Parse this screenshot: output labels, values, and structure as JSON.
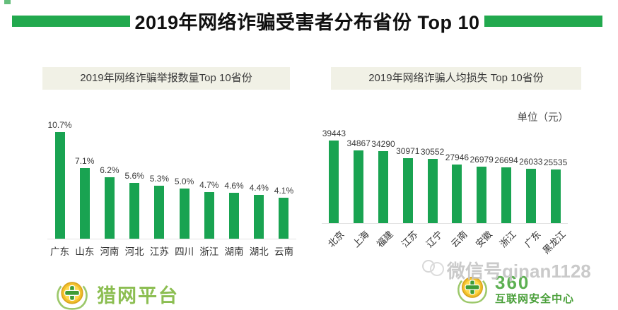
{
  "title": "2019年网络诈骗受害者分布省份 Top 10",
  "colors": {
    "banner_green": "#22a94e",
    "bar_green": "#19a351",
    "header_bg": "#f1f1e6",
    "logo_light_green": "#8cbe52",
    "logo_green": "#5db052",
    "watermark_gray": "#c6c6c6"
  },
  "chart_data": [
    {
      "type": "bar",
      "title": "2019年网络诈骗举报数量Top 10省份",
      "categories": [
        "广东",
        "山东",
        "河南",
        "河北",
        "江苏",
        "四川",
        "浙江",
        "湖南",
        "湖北",
        "云南"
      ],
      "values": [
        10.7,
        7.1,
        6.2,
        5.6,
        5.3,
        5.0,
        4.7,
        4.6,
        4.4,
        4.1
      ],
      "value_labels": [
        "10.7%",
        "7.1%",
        "6.2%",
        "5.6%",
        "5.3%",
        "5.0%",
        "4.7%",
        "4.6%",
        "4.4%",
        "4.1%"
      ],
      "unit_label": "",
      "ylabel": "",
      "xlabel": "",
      "ylim": [
        0,
        10.7
      ],
      "grid": false,
      "legend": "none",
      "category_rotation": 0
    },
    {
      "type": "bar",
      "title": "2019年网络诈骗人均损失 Top 10省份",
      "categories": [
        "北京",
        "上海",
        "福建",
        "江苏",
        "辽宁",
        "云南",
        "安徽",
        "浙江",
        "广东",
        "黑龙江"
      ],
      "values": [
        39443,
        34867,
        34290,
        30971,
        30552,
        27946,
        26979,
        26694,
        26033,
        25535
      ],
      "value_labels": [
        "39443",
        "34867",
        "34290",
        "30971",
        "30552",
        "27946",
        "26979",
        "26694",
        "26033",
        "25535"
      ],
      "unit_label": "单位（元）",
      "ylabel": "",
      "xlabel": "",
      "ylim": [
        0,
        39443
      ],
      "grid": false,
      "legend": "none",
      "category_rotation": -45
    }
  ],
  "footer": {
    "left_logo_text": "猎网平台",
    "right_logo_line1": "360",
    "right_logo_line2": "互联网安全中心",
    "watermark": "微信号qinan1128"
  }
}
